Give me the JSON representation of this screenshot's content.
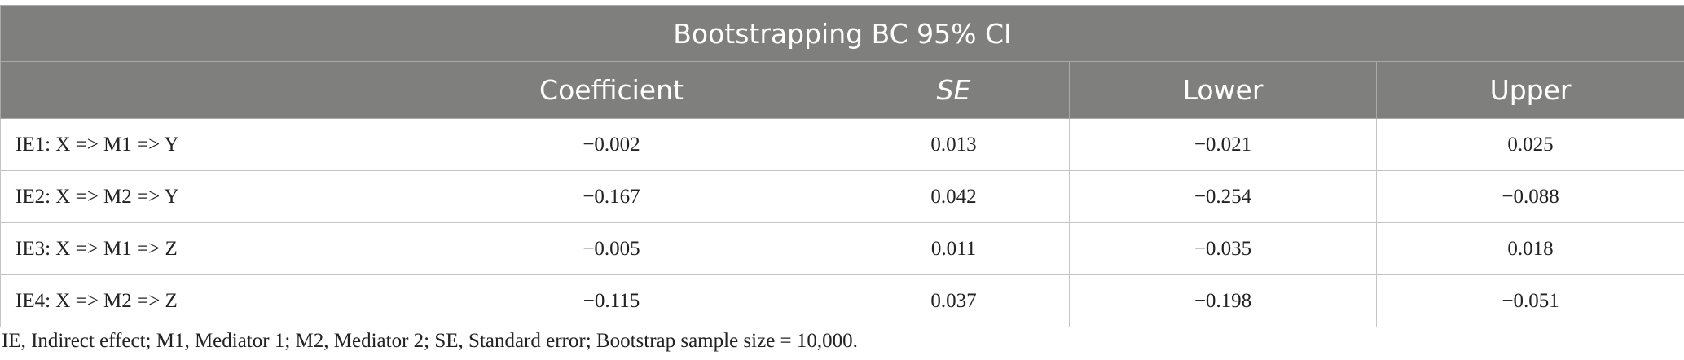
{
  "table": {
    "title": "Bootstrapping BC 95% CI",
    "columns": [
      "Coefficient",
      "SE",
      "Lower",
      "Upper"
    ],
    "rows": [
      [
        "IE1: X => M1 => Y",
        "−0.002",
        "0.013",
        "−0.021",
        "0.025"
      ],
      [
        "IE2: X => M2 => Y",
        "−0.167",
        "0.042",
        "−0.254",
        "−0.088"
      ],
      [
        "IE3: X => M1 => Z",
        "−0.005",
        "0.011",
        "−0.035",
        "0.018"
      ],
      [
        "IE4: X => M2 => Z",
        "−0.115",
        "0.037",
        "−0.198",
        "−0.051"
      ]
    ],
    "footnote": "IE, Indirect effect; M1, Mediator 1; M2, Mediator 2; SE, Standard error; Bootstrap sample size = 10,000."
  }
}
